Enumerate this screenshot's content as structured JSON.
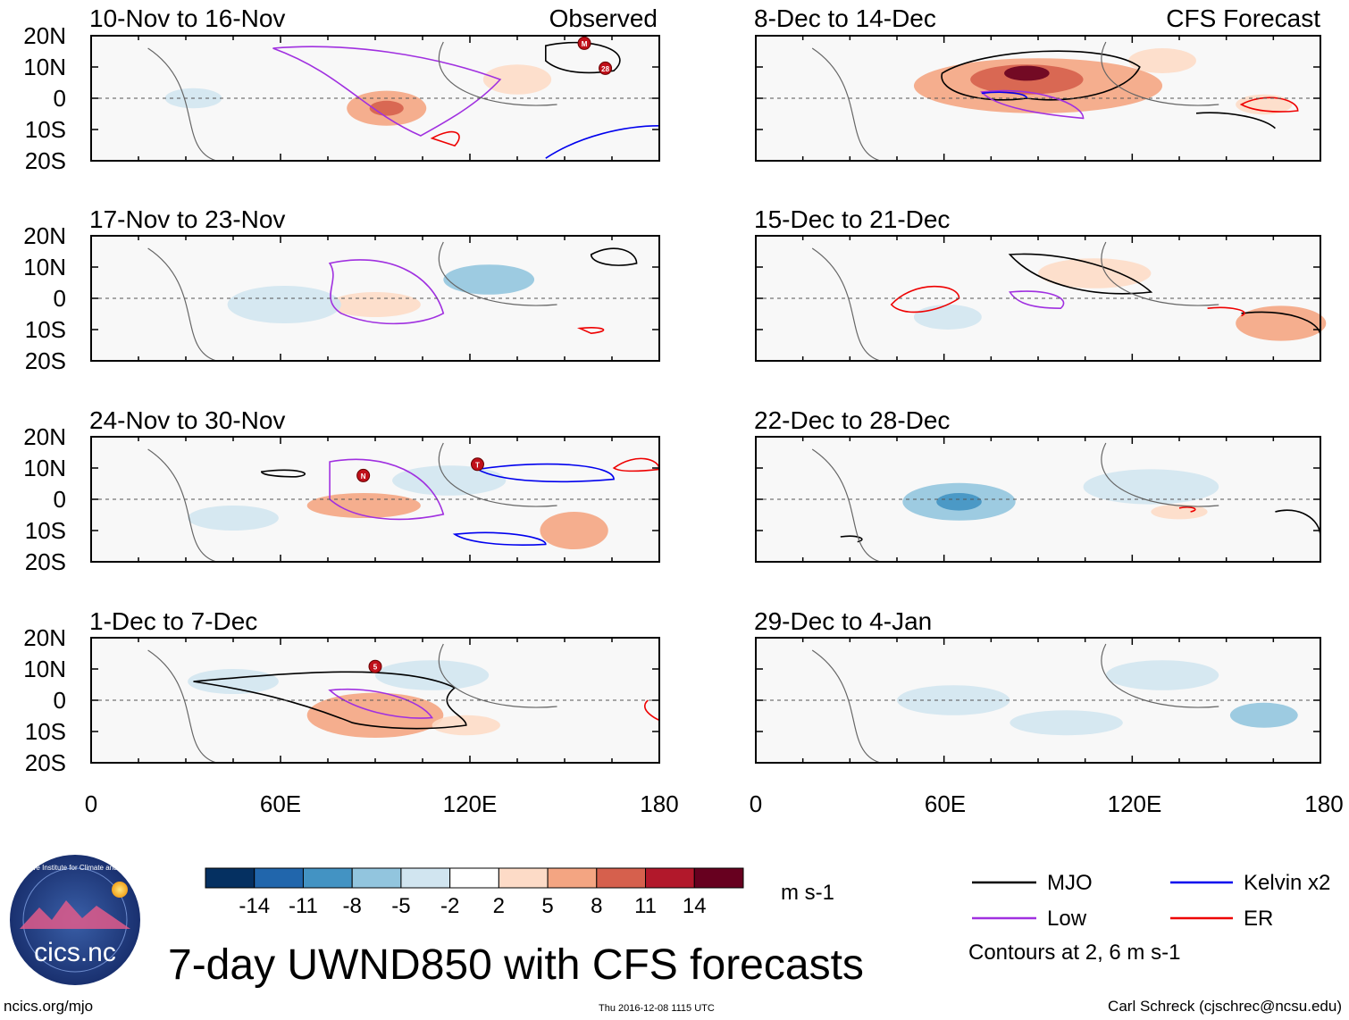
{
  "figure": {
    "title": "7-day UWND850 with CFS forecasts",
    "observed_label": "Observed",
    "forecast_label": "CFS Forecast",
    "units": "m s-1",
    "contour_note": "Contours at 2, 6 m s-1",
    "footer_left": "ncics.org/mjo",
    "footer_center": "Thu 2016-12-08 1115 UTC",
    "footer_right": "Carl Schreck (cjschrec@ncsu.edu)",
    "logo_text": "cics.nc",
    "logo_ring_text": "Cooperative Institute for Climate and Satellites"
  },
  "axes": {
    "lat_labels": [
      "20N",
      "10N",
      "0",
      "10S",
      "20S"
    ],
    "lon_labels": [
      "0",
      "60E",
      "120E",
      "180"
    ]
  },
  "panels": {
    "left": [
      {
        "title": "10-Nov to 16-Nov"
      },
      {
        "title": "17-Nov to 23-Nov"
      },
      {
        "title": "24-Nov to 30-Nov"
      },
      {
        "title": "1-Dec to 7-Dec"
      }
    ],
    "right": [
      {
        "title": "8-Dec to 14-Dec"
      },
      {
        "title": "15-Dec to 21-Dec"
      },
      {
        "title": "22-Dec to 28-Dec"
      },
      {
        "title": "29-Dec to 4-Jan"
      }
    ]
  },
  "colorbar": {
    "labels": [
      "-14",
      "-11",
      "-8",
      "-5",
      "-2",
      "2",
      "5",
      "8",
      "11",
      "14"
    ],
    "colors": [
      "#053061",
      "#2166ac",
      "#4393c3",
      "#92c5de",
      "#d1e5f0",
      "#ffffff",
      "#fddbc7",
      "#f4a582",
      "#d6604d",
      "#b2182b",
      "#67001f"
    ]
  },
  "legend": {
    "items": [
      {
        "label": "MJO",
        "color": "#000000"
      },
      {
        "label": "Kelvin x2",
        "color": "#0000ee"
      },
      {
        "label": "Low",
        "color": "#a030e0"
      },
      {
        "label": "ER",
        "color": "#ee0000"
      }
    ]
  },
  "storm_labels": [
    "M",
    "28",
    "N",
    "T",
    "5"
  ]
}
